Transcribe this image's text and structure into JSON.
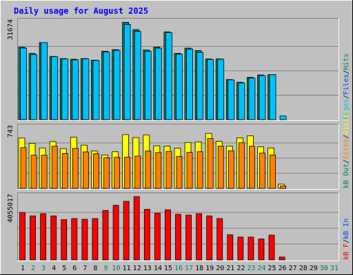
{
  "chart_data": {
    "type": "bar",
    "title": "Daily usage for August 2025",
    "x": [
      "1",
      "2",
      "3",
      "4",
      "5",
      "6",
      "7",
      "8",
      "9",
      "10",
      "11",
      "12",
      "13",
      "14",
      "15",
      "16",
      "17",
      "18",
      "19",
      "20",
      "21",
      "22",
      "23",
      "24",
      "25",
      "26",
      "27",
      "28",
      "29",
      "30",
      "31"
    ],
    "weekend_days": [
      2,
      3,
      9,
      10,
      16,
      17,
      23,
      24,
      30,
      31
    ],
    "colors": {
      "title": "#0000ff",
      "weekday_label": "#000000",
      "weekend_label": "#00805c",
      "hits": "#00805c",
      "files": "#0040ff",
      "pages": "#00c0ff",
      "visits": "#ffff00",
      "sites": "#ff8000",
      "kb_f": "#ff0000",
      "kb_in": "#0040ff",
      "kb_out": "#00805c",
      "panel_bg": "#c0c0c0",
      "grid": "#808080"
    },
    "panels": [
      {
        "max_label": "31674",
        "ymax": 31674,
        "legend": [
          {
            "text": "Hits",
            "color": "#00805c"
          },
          {
            "text": "Files",
            "color": "#0040ff"
          },
          {
            "text": "Pages",
            "color": "#00c0ff"
          }
        ],
        "series": [
          {
            "name": "Hits",
            "color": "#00805c",
            "values": [
              23500,
              21500,
              25000,
              20500,
              19800,
              19600,
              19800,
              19300,
              22200,
              22700,
              31600,
              29200,
              22600,
              23500,
              28500,
              21500,
              23200,
              22400,
              19700,
              19700,
              13000,
              12100,
              13700,
              14500,
              14600,
              null,
              null,
              null,
              null,
              null,
              null
            ]
          },
          {
            "name": "Files",
            "color": "#00c0ff",
            "values": [
              23200,
              21100,
              25000,
              20400,
              19700,
              19400,
              19700,
              19200,
              21900,
              22500,
              30900,
              28600,
              22200,
              23200,
              28200,
              21200,
              22900,
              21800,
              19500,
              19600,
              12900,
              11900,
              13500,
              14300,
              14600,
              1200,
              null,
              null,
              null,
              null,
              null
            ]
          }
        ]
      },
      {
        "max_label": "743",
        "ymax": 743,
        "legend": [
          {
            "text": "Visits",
            "color": "#ffff00"
          },
          {
            "text": "Sites",
            "color": "#ff8000"
          },
          {
            "text": "kB Out",
            "color": "#00805c"
          }
        ],
        "series": [
          {
            "name": "Visits",
            "color": "#ffff00",
            "values": [
              618,
              553,
              497,
              575,
              489,
              628,
              531,
              459,
              409,
              450,
              660,
              624,
              657,
              523,
              518,
              493,
              564,
              570,
              675,
              577,
              520,
              621,
              645,
              510,
              496,
              52,
              null,
              null,
              null,
              null,
              null
            ]
          },
          {
            "name": "Sites",
            "color": "#ff8000",
            "values": [
              500,
              408,
              407,
              517,
              428,
              491,
              448,
              425,
              376,
              381,
              383,
              397,
              458,
              440,
              454,
              392,
              442,
              450,
              612,
              519,
              461,
              560,
              518,
              433,
              410,
              31,
              null,
              null,
              null,
              null,
              null
            ]
          }
        ]
      },
      {
        "max_label": "4055017",
        "ymax": 4055017,
        "legend": [
          {
            "text": "kB In",
            "color": "#0040ff"
          },
          {
            "text": "kB F",
            "color": "#ff0000"
          }
        ],
        "series": [
          {
            "name": "kB F",
            "color": "#ff0000",
            "values": [
              3040000,
              2820000,
              2960000,
              2820000,
              2580000,
              2650000,
              2600000,
              2650000,
              3170000,
              3500000,
              3750000,
              4055000,
              3240000,
              2990000,
              3210000,
              2920000,
              2870000,
              2960000,
              2820000,
              2650000,
              1610000,
              1460000,
              1460000,
              1340000,
              1590000,
              180000,
              null,
              null,
              null,
              null,
              null
            ]
          }
        ]
      }
    ]
  }
}
